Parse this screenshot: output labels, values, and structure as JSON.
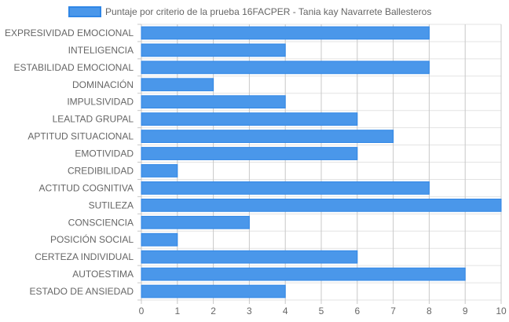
{
  "chart_data": {
    "type": "bar",
    "orientation": "horizontal",
    "legend_position": "top",
    "grid": true,
    "categories": [
      "EXPRESIVIDAD EMOCIONAL",
      "INTELIGENCIA",
      "ESTABILIDAD EMOCIONAL",
      "DOMINACIÓN",
      "IMPULSIVIDAD",
      "LEALTAD GRUPAL",
      "APTITUD SITUACIONAL",
      "EMOTIVIDAD",
      "CREDIBILIDAD",
      "ACTITUD COGNITIVA",
      "SUTILEZA",
      "CONSCIENCIA",
      "POSICIÓN SOCIAL",
      "CERTEZA INDIVIDUAL",
      "AUTOESTIMA",
      "ESTADO DE ANSIEDAD"
    ],
    "series": [
      {
        "name": "Puntaje por criterio de la prueba 16FACPER - Tania kay Navarrete Ballesteros",
        "values": [
          8,
          4,
          8,
          2,
          4,
          6,
          7,
          6,
          1,
          8,
          10,
          3,
          1,
          6,
          9,
          4
        ]
      }
    ],
    "xlim": [
      0,
      10
    ],
    "xticks": [
      "0",
      "1",
      "2",
      "3",
      "4",
      "5",
      "6",
      "7",
      "8",
      "9",
      "10"
    ],
    "colors": {
      "bar_fill": "#4a97ea",
      "bar_stroke": "#2f86e6",
      "grid": "#e3e3e3",
      "grid_major": "#c8c8c8",
      "text": "#666666"
    }
  }
}
